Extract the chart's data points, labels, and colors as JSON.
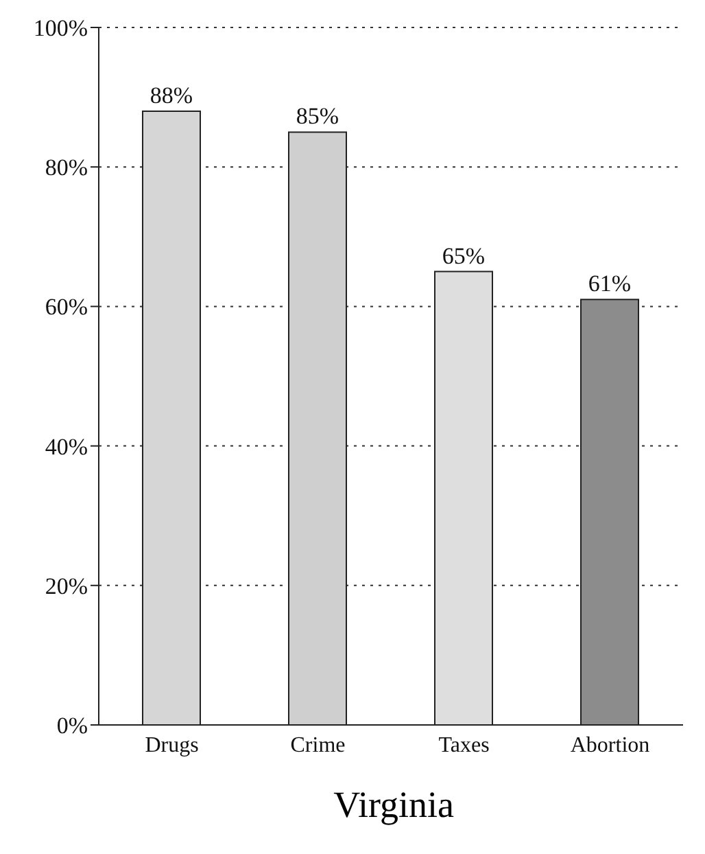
{
  "chart_data": {
    "type": "bar",
    "title": "Virginia",
    "categories": [
      "Drugs",
      "Crime",
      "Taxes",
      "Abortion"
    ],
    "values": [
      88,
      85,
      65,
      61
    ],
    "colors": [
      "#d6d6d6",
      "#cfcfcf",
      "#dedede",
      "#8c8c8c"
    ],
    "value_labels": [
      "88%",
      "85%",
      "65%",
      "61%"
    ],
    "ylim": [
      0,
      100
    ],
    "yticks": [
      {
        "value": 0,
        "label": "0%"
      },
      {
        "value": 20,
        "label": "20%"
      },
      {
        "value": 40,
        "label": "40%"
      },
      {
        "value": 60,
        "label": "60%"
      },
      {
        "value": 80,
        "label": "80%"
      },
      {
        "value": 100,
        "label": "100%"
      }
    ],
    "grid": "y"
  }
}
